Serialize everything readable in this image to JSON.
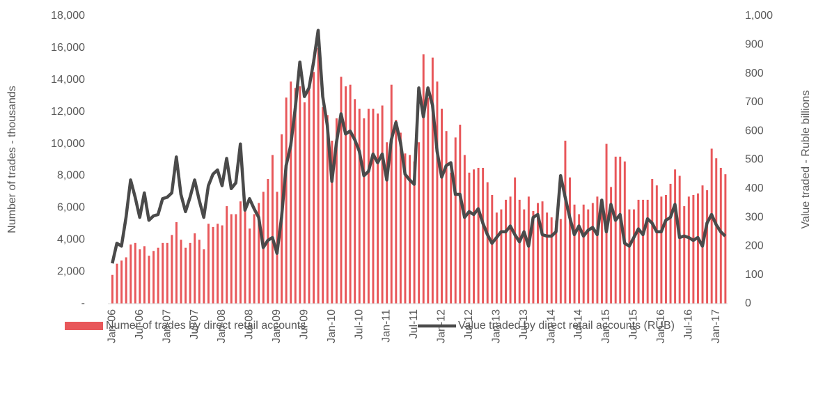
{
  "chart_data": {
    "type": "bar-line",
    "y_label": "Number of trades - thousands",
    "y2_label": "Value traded - Ruble billions",
    "categories": [
      "Jan-06",
      null,
      null,
      null,
      null,
      null,
      "Jul-06",
      null,
      null,
      null,
      null,
      null,
      "Jan-07",
      null,
      null,
      null,
      null,
      null,
      "Jul-07",
      null,
      null,
      null,
      null,
      null,
      "Jan-08",
      null,
      null,
      null,
      null,
      null,
      "Jul-08",
      null,
      null,
      null,
      null,
      null,
      "Jan-09",
      null,
      null,
      null,
      null,
      null,
      "Jul-09",
      null,
      null,
      null,
      null,
      null,
      "Jan-10",
      null,
      null,
      null,
      null,
      null,
      "Jul-10",
      null,
      null,
      null,
      null,
      null,
      "Jan-11",
      null,
      null,
      null,
      null,
      null,
      "Jul-11",
      null,
      null,
      null,
      null,
      null,
      "Jan-12",
      null,
      null,
      null,
      null,
      null,
      "Jul-12",
      null,
      null,
      null,
      null,
      null,
      "Jan-13",
      null,
      null,
      null,
      null,
      null,
      "Jul-13",
      null,
      null,
      null,
      null,
      null,
      "Jan-14",
      null,
      null,
      null,
      null,
      null,
      "Jul-14",
      null,
      null,
      null,
      null,
      null,
      "Jan-15",
      null,
      null,
      null,
      null,
      null,
      "Jul-15",
      null,
      null,
      null,
      null,
      null,
      "Jan-16",
      null,
      null,
      null,
      null,
      null,
      "Jul-16",
      null,
      null,
      null,
      null,
      null,
      "Jan-17",
      null,
      null
    ],
    "series": [
      {
        "name": "Numer of trades by direct retail accounts",
        "color": "#e8575a",
        "kind": "bar",
        "values": [
          1800,
          2500,
          2700,
          2900,
          3700,
          3800,
          3400,
          3600,
          3000,
          3300,
          3500,
          3800,
          3800,
          4300,
          5100,
          4000,
          3500,
          3800,
          4400,
          4000,
          3400,
          5000,
          4800,
          5000,
          4900,
          6100,
          5600,
          5600,
          6400,
          6100,
          4700,
          5600,
          6300,
          7000,
          7800,
          9300,
          7000,
          10600,
          12900,
          13900,
          13500,
          13600,
          12600,
          13400,
          14500,
          16000,
          12300,
          11800,
          10200,
          11600,
          14200,
          13600,
          13700,
          12800,
          12200,
          11600,
          12200,
          12200,
          11900,
          12400,
          10100,
          13700,
          11500,
          10700,
          9400,
          9300,
          8900,
          10100,
          15600,
          12900,
          15400,
          13900,
          12200,
          10800,
          8200,
          10400,
          11200,
          9300,
          8200,
          8400,
          8500,
          8500,
          7600,
          6800,
          5700,
          5900,
          6500,
          6700,
          7900,
          6500,
          5900,
          6700,
          5800,
          6300,
          6400,
          5700,
          5400,
          5200,
          5300,
          10200,
          7900,
          6200,
          5600,
          6200,
          5900,
          6300,
          6700,
          6000,
          10000,
          7300,
          9200,
          9200,
          8900,
          5900,
          5900,
          6500,
          6500,
          6500,
          7800,
          7400,
          6700,
          6800,
          7500,
          8400,
          8000,
          6100,
          6700,
          6800,
          6900,
          7400,
          7100,
          9700,
          9100,
          8500,
          8100
        ]
      },
      {
        "name": "Value traded by direct retail accounts (RUB)",
        "color": "#4a4a4a",
        "kind": "line",
        "axis": "y2",
        "values": [
          140,
          210,
          200,
          300,
          430,
          370,
          300,
          385,
          290,
          305,
          310,
          365,
          370,
          385,
          510,
          380,
          320,
          370,
          430,
          360,
          300,
          410,
          450,
          465,
          410,
          505,
          400,
          420,
          555,
          325,
          365,
          330,
          300,
          195,
          220,
          230,
          175,
          300,
          480,
          550,
          680,
          840,
          720,
          750,
          840,
          950,
          720,
          620,
          425,
          560,
          660,
          590,
          600,
          570,
          530,
          445,
          460,
          520,
          490,
          520,
          430,
          570,
          630,
          560,
          450,
          430,
          415,
          750,
          650,
          750,
          690,
          530,
          440,
          480,
          490,
          380,
          380,
          300,
          320,
          310,
          330,
          280,
          240,
          210,
          230,
          250,
          250,
          270,
          240,
          215,
          250,
          200,
          300,
          310,
          240,
          235,
          235,
          250,
          445,
          370,
          300,
          240,
          270,
          235,
          255,
          265,
          240,
          360,
          250,
          345,
          290,
          310,
          210,
          200,
          230,
          260,
          240,
          295,
          280,
          250,
          250,
          290,
          300,
          345,
          230,
          235,
          230,
          220,
          230,
          200,
          280,
          310,
          275,
          250,
          235
        ]
      }
    ],
    "ylim": [
      0,
      18000
    ],
    "yticks": [
      {
        "value": 0,
        "label": "-"
      },
      {
        "value": 2000,
        "label": "2,000"
      },
      {
        "value": 4000,
        "label": "4,000"
      },
      {
        "value": 6000,
        "label": "6,000"
      },
      {
        "value": 8000,
        "label": "8,000"
      },
      {
        "value": 10000,
        "label": "10,000"
      },
      {
        "value": 12000,
        "label": "12,000"
      },
      {
        "value": 14000,
        "label": "14,000"
      },
      {
        "value": 16000,
        "label": "16,000"
      },
      {
        "value": 18000,
        "label": "18,000"
      }
    ],
    "y2lim": [
      0,
      1000
    ],
    "y2ticks": [
      0,
      100,
      200,
      300,
      400,
      500,
      600,
      700,
      800,
      900,
      {
        "value": 1000,
        "label": "1,000"
      }
    ],
    "grid": false
  }
}
